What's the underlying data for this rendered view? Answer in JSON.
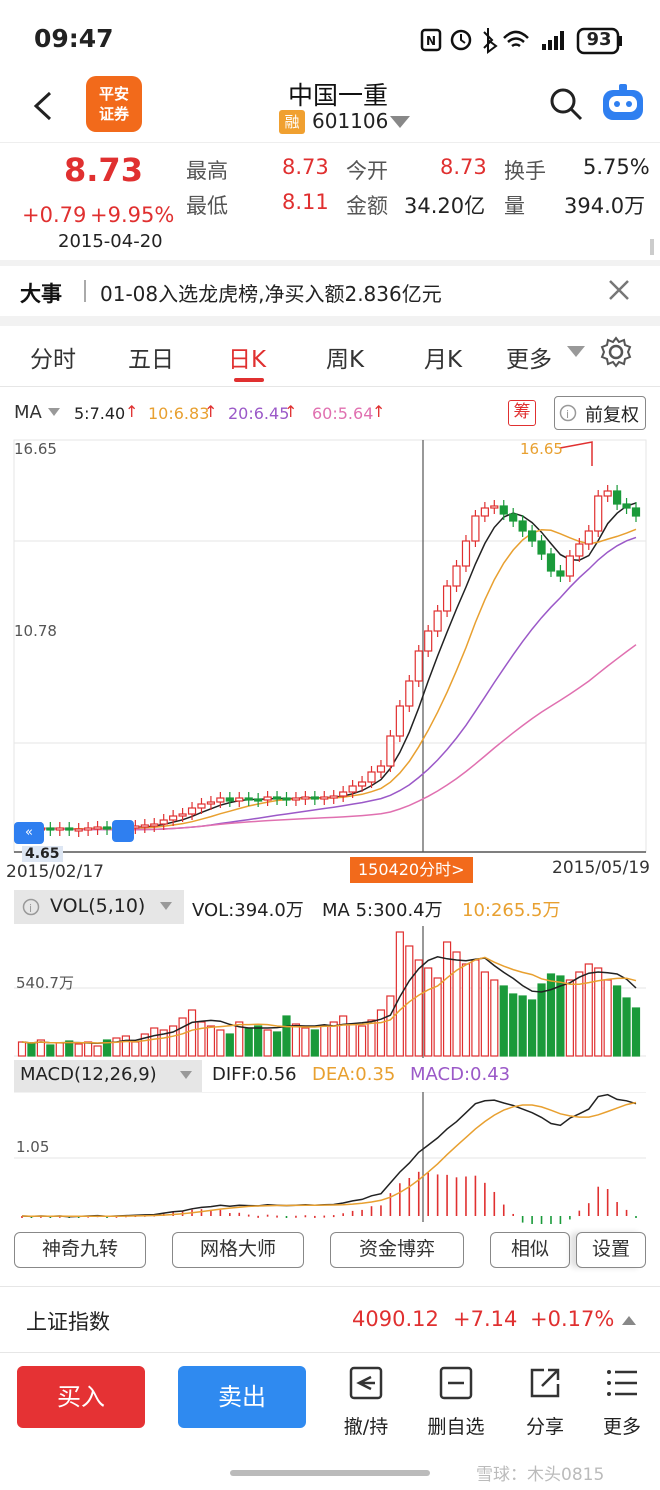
{
  "status": {
    "time": "09:47",
    "battery": "93"
  },
  "header": {
    "logo_text": "平安证券",
    "stock_name": "中国一重",
    "rong_badge": "融",
    "stock_code": "601106"
  },
  "quote": {
    "price": "8.73",
    "change": "+0.79",
    "change_pct": "+9.95%",
    "date": "2015-04-20",
    "high_label": "最高",
    "high": "8.73",
    "low_label": "最低",
    "low": "8.11",
    "open_label": "今开",
    "open": "8.73",
    "amount_label": "金额",
    "amount": "34.20亿",
    "turnover_label": "换手",
    "turnover": "5.75%",
    "volume_label": "量",
    "volume": "394.0万"
  },
  "event": {
    "label": "大事",
    "text": "01-08入选龙虎榜,净买入额2.836亿元"
  },
  "tabs": [
    "分时",
    "五日",
    "日K",
    "周K",
    "月K",
    "更多"
  ],
  "active_tab": "日K",
  "ma_bar": {
    "label": "MA",
    "ma5": "5:7.40",
    "ma10": "10:6.83",
    "ma20": "20:6.45",
    "ma60": "60:5.64",
    "chou_badge": "筹",
    "fuquan": "前复权"
  },
  "chart_data": {
    "type": "candlestick",
    "price_axis_labels": [
      "16.65",
      "10.78",
      "4.65"
    ],
    "ylim": [
      4.65,
      16.65
    ],
    "start_date": "2015/02/17",
    "end_date": "2015/05/19",
    "max_label": "16.65",
    "cursor_label": "150420分时>",
    "cursor_date": "2015-04-20",
    "colors": {
      "up": "#e03030",
      "down": "#1a9a3a",
      "ma5": "#222222",
      "ma10": "#e8a030",
      "ma20": "#9b59c8",
      "ma60": "#e070b0"
    }
  },
  "volume_panel": {
    "label": "VOL(5,10)",
    "vol": "VOL:394.0万",
    "ma5": "MA 5:300.4万",
    "ma10": "10:265.5万",
    "axis_label": "540.7万"
  },
  "macd_panel": {
    "label": "MACD(12,26,9)",
    "diff": "DIFF:0.56",
    "dea": "DEA:0.35",
    "macd": "MACD:0.43",
    "axis_label": "1.05"
  },
  "tools": [
    "神奇九转",
    "网格大师",
    "资金博弈",
    "相似",
    "设置"
  ],
  "index_bar": {
    "name": "上证指数",
    "value": "4090.12",
    "change": "+7.14",
    "pct": "+0.17%"
  },
  "bottom": {
    "buy": "买入",
    "sell": "卖出",
    "cancel": "撤/持",
    "remove": "删自选",
    "share": "分享",
    "more": "更多"
  },
  "watermark": "雪球：木头0815"
}
